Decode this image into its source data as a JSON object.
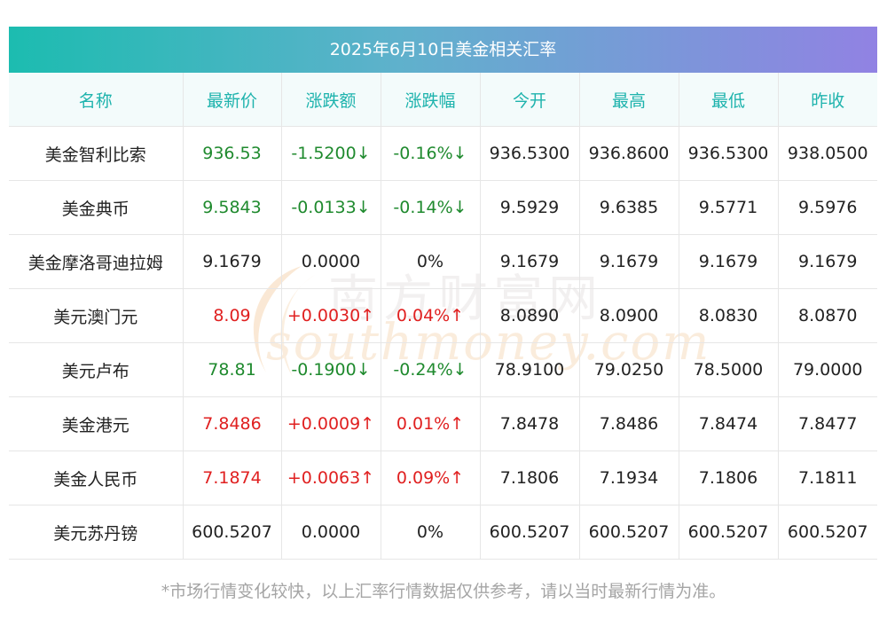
{
  "title": "2025年6月10日美金相关汇率",
  "columns": [
    "名称",
    "最新价",
    "涨跌额",
    "涨跌幅",
    "今开",
    "最高",
    "最低",
    "昨收"
  ],
  "rows": [
    {
      "name": "美金智利比索",
      "latest": "936.53",
      "change": "-1.5200↓",
      "pct": "-0.16%↓",
      "open": "936.5300",
      "high": "936.8600",
      "low": "936.5300",
      "prev": "938.0500",
      "trend": "down"
    },
    {
      "name": "美金典币",
      "latest": "9.5843",
      "change": "-0.0133↓",
      "pct": "-0.14%↓",
      "open": "9.5929",
      "high": "9.6385",
      "low": "9.5771",
      "prev": "9.5976",
      "trend": "down"
    },
    {
      "name": "美金摩洛哥迪拉姆",
      "latest": "9.1679",
      "change": "0.0000",
      "pct": "0%",
      "open": "9.1679",
      "high": "9.1679",
      "low": "9.1679",
      "prev": "9.1679",
      "trend": "flat"
    },
    {
      "name": "美元澳门元",
      "latest": "8.09",
      "change": "+0.0030↑",
      "pct": "0.04%↑",
      "open": "8.0890",
      "high": "8.0900",
      "low": "8.0830",
      "prev": "8.0870",
      "trend": "up"
    },
    {
      "name": "美元卢布",
      "latest": "78.81",
      "change": "-0.1900↓",
      "pct": "-0.24%↓",
      "open": "78.9100",
      "high": "79.0250",
      "low": "78.5000",
      "prev": "79.0000",
      "trend": "down"
    },
    {
      "name": "美金港元",
      "latest": "7.8486",
      "change": "+0.0009↑",
      "pct": "0.01%↑",
      "open": "7.8478",
      "high": "7.8486",
      "low": "7.8474",
      "prev": "7.8477",
      "trend": "up"
    },
    {
      "name": "美金人民币",
      "latest": "7.1874",
      "change": "+0.0063↑",
      "pct": "0.09%↑",
      "open": "7.1806",
      "high": "7.1934",
      "low": "7.1806",
      "prev": "7.1811",
      "trend": "up"
    },
    {
      "name": "美元苏丹镑",
      "latest": "600.5207",
      "change": "0.0000",
      "pct": "0%",
      "open": "600.5207",
      "high": "600.5207",
      "low": "600.5207",
      "prev": "600.5207",
      "trend": "flat"
    }
  ],
  "watermark": {
    "cn": "南方财富网",
    "en": "southmoney.com"
  },
  "footnote": "*市场行情变化较快，以上汇率行情数据仅供参考，请以当时最新行情为准。",
  "colors": {
    "up": "#e02020",
    "down": "#1f8a2e",
    "header_text": "#1eb3ad",
    "title_start": "#1cbcb0",
    "title_end": "#9182e3"
  }
}
